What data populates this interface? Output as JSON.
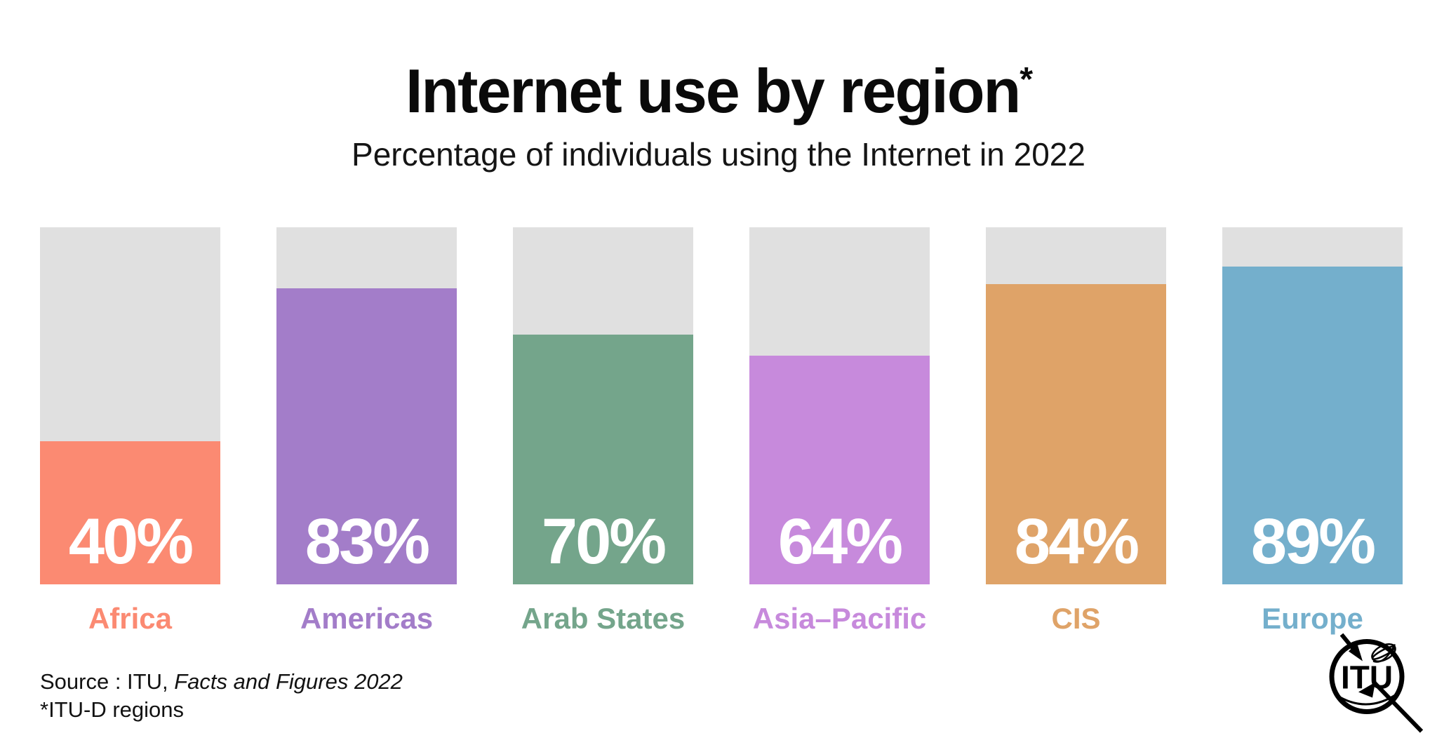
{
  "header": {
    "title": "Internet use by region",
    "asterisk": "*",
    "subtitle": "Percentage of individuals using the Internet in 2022"
  },
  "chart_data": {
    "type": "bar",
    "title": "Internet use by region*",
    "subtitle": "Percentage of individuals using the Internet in 2022",
    "categories": [
      "Africa",
      "Americas",
      "Arab States",
      "Asia–Pacific",
      "CIS",
      "Europe"
    ],
    "values": [
      40,
      83,
      70,
      64,
      84,
      89
    ],
    "value_labels": [
      "40%",
      "83%",
      "70%",
      "64%",
      "84%",
      "89%"
    ],
    "colors": [
      "#FB8A72",
      "#A37DC9",
      "#74A58B",
      "#C78ADC",
      "#DFA368",
      "#74AFCC"
    ],
    "track_color": "#E0E0E0",
    "unit": "%",
    "ylim": [
      0,
      100
    ],
    "grid": false,
    "legend": false,
    "value_label_position": "inside-bottom",
    "category_label_position": "below-bar"
  },
  "footer": {
    "source_label": "Source : ITU,",
    "source_title": "Facts and Figures 2022",
    "note": "*ITU-D regions"
  },
  "logo": {
    "name": "ITU",
    "text": "ITU"
  }
}
